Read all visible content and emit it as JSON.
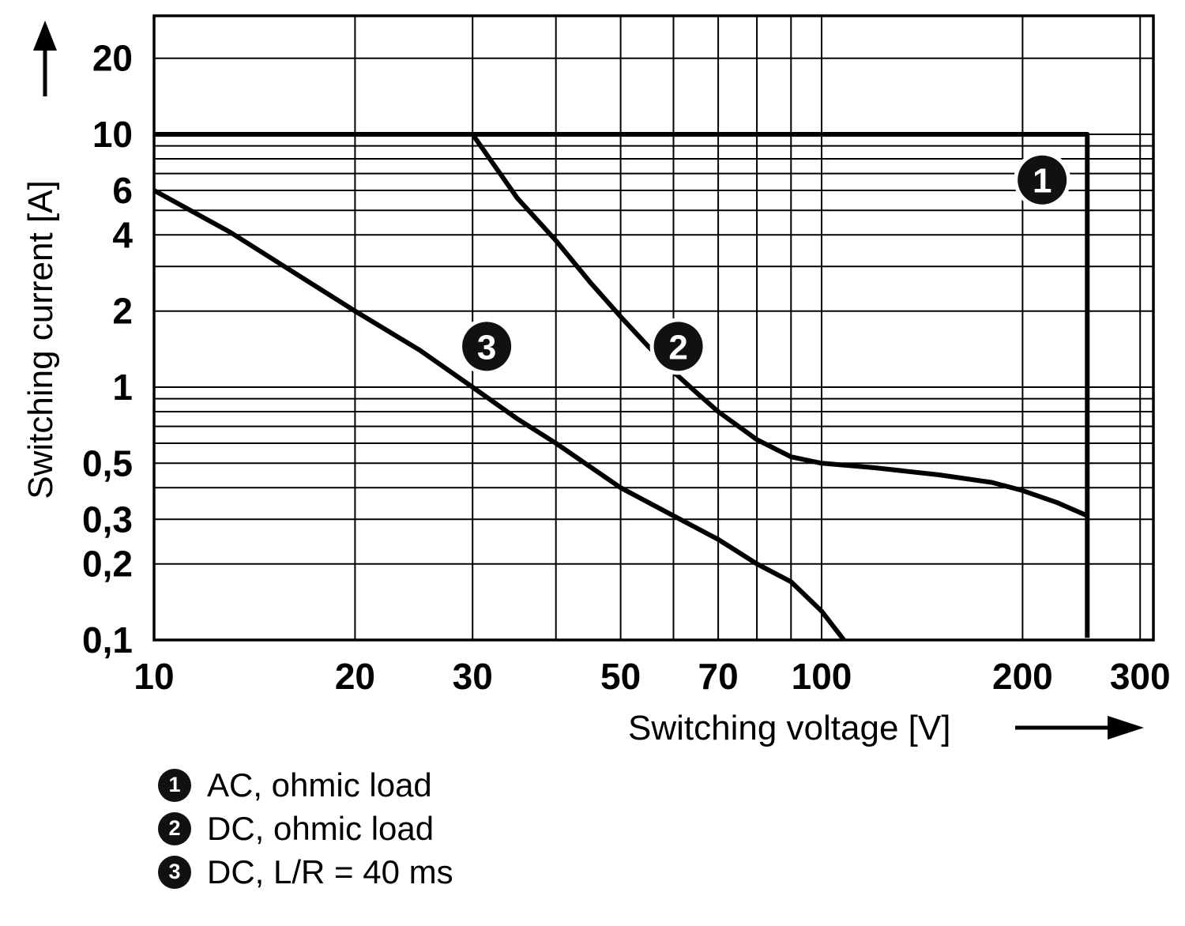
{
  "y_axis_title": "Switching current [A]",
  "x_axis_title": "Switching voltage [V]",
  "legend": {
    "items": [
      {
        "marker": "1",
        "label": "AC, ohmic load"
      },
      {
        "marker": "2",
        "label": "DC, ohmic load"
      },
      {
        "marker": "3",
        "label": "DC, L/R = 40 ms"
      }
    ]
  },
  "chart_data": {
    "type": "line",
    "title": "",
    "xlabel": "Switching voltage [V]",
    "ylabel": "Switching current [A]",
    "x_axis": {
      "scale": "log",
      "min": 10,
      "max": 314,
      "ticks": [
        {
          "v": 10,
          "label": "10"
        },
        {
          "v": 20,
          "label": "20"
        },
        {
          "v": 30,
          "label": "30"
        },
        {
          "v": 50,
          "label": "50"
        },
        {
          "v": 70,
          "label": "70"
        },
        {
          "v": 100,
          "label": "100"
        },
        {
          "v": 200,
          "label": "200"
        },
        {
          "v": 300,
          "label": "300"
        }
      ],
      "gridlines": [
        10,
        20,
        30,
        40,
        50,
        60,
        70,
        80,
        90,
        100,
        200,
        300
      ]
    },
    "y_axis": {
      "scale": "log",
      "min": 0.1,
      "max": 29,
      "ticks": [
        {
          "v": 20,
          "label": "20"
        },
        {
          "v": 10,
          "label": "10"
        },
        {
          "v": 6,
          "label": "6"
        },
        {
          "v": 4,
          "label": "4"
        },
        {
          "v": 2,
          "label": "2"
        },
        {
          "v": 1,
          "label": "1"
        },
        {
          "v": 0.5,
          "label": "0,5"
        },
        {
          "v": 0.3,
          "label": "0,3"
        },
        {
          "v": 0.2,
          "label": "0,2"
        },
        {
          "v": 0.1,
          "label": "0,1"
        }
      ],
      "gridlines": [
        0.1,
        0.2,
        0.3,
        0.4,
        0.5,
        0.6,
        0.7,
        0.8,
        0.9,
        1,
        2,
        3,
        4,
        5,
        6,
        7,
        8,
        9,
        10,
        20
      ]
    },
    "series": [
      {
        "id": "1",
        "name": "AC, ohmic load",
        "points": [
          [
            10,
            10
          ],
          [
            250,
            10
          ],
          [
            250,
            0.102
          ]
        ]
      },
      {
        "id": "2",
        "name": "DC, ohmic load",
        "points": [
          [
            30,
            10
          ],
          [
            35,
            5.6
          ],
          [
            40,
            3.8
          ],
          [
            45,
            2.6
          ],
          [
            50,
            1.9
          ],
          [
            55,
            1.45
          ],
          [
            60,
            1.15
          ],
          [
            65,
            0.95
          ],
          [
            70,
            0.8
          ],
          [
            80,
            0.62
          ],
          [
            90,
            0.53
          ],
          [
            100,
            0.5
          ],
          [
            120,
            0.48
          ],
          [
            150,
            0.45
          ],
          [
            180,
            0.42
          ],
          [
            200,
            0.39
          ],
          [
            225,
            0.35
          ],
          [
            250,
            0.31
          ]
        ]
      },
      {
        "id": "3",
        "name": "DC, L/R = 40 ms",
        "points": [
          [
            10,
            6
          ],
          [
            13,
            4.1
          ],
          [
            16,
            2.9
          ],
          [
            20,
            2.0
          ],
          [
            25,
            1.4
          ],
          [
            30,
            1.0
          ],
          [
            35,
            0.75
          ],
          [
            40,
            0.6
          ],
          [
            50,
            0.4
          ],
          [
            60,
            0.31
          ],
          [
            70,
            0.25
          ],
          [
            80,
            0.2
          ],
          [
            90,
            0.17
          ],
          [
            100,
            0.13
          ],
          [
            108,
            0.1
          ]
        ]
      }
    ],
    "markers": [
      {
        "label": "1",
        "x": 214,
        "y": 6.6
      },
      {
        "label": "2",
        "x": 61,
        "y": 1.45
      },
      {
        "label": "3",
        "x": 31.5,
        "y": 1.45
      }
    ]
  }
}
